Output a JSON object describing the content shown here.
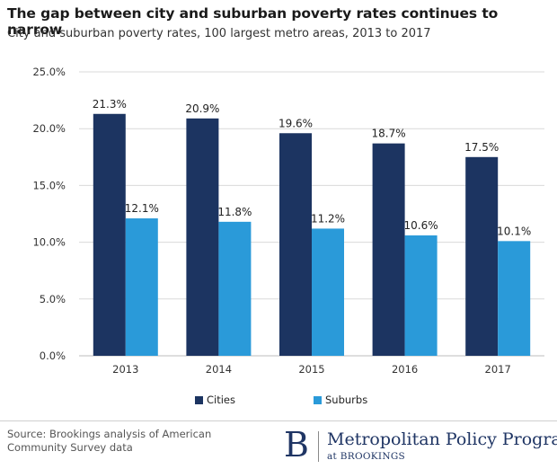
{
  "title": "The gap between city and suburban poverty rates continues to narrow",
  "subtitle": "City and suburban poverty rates, 100 largest metro areas, 2013 to 2017",
  "source": "Source: Brookings analysis of American Community Survey data",
  "brand": {
    "letter": "B",
    "program": "Metropolitan Policy Program",
    "at": "at BROOKINGS"
  },
  "colors": {
    "cities": "#1c3461",
    "suburbs": "#2a9ad9",
    "grid": "#d9d9d9"
  },
  "chart_data": {
    "type": "bar",
    "categories": [
      "2013",
      "2014",
      "2015",
      "2016",
      "2017"
    ],
    "series": [
      {
        "name": "Cities",
        "values": [
          21.3,
          20.9,
          19.6,
          18.7,
          17.5
        ],
        "labels": [
          "21.3%",
          "20.9%",
          "19.6%",
          "18.7%",
          "17.5%"
        ]
      },
      {
        "name": "Suburbs",
        "values": [
          12.1,
          11.8,
          11.2,
          10.6,
          10.1
        ],
        "labels": [
          "12.1%",
          "11.8%",
          "11.2%",
          "10.6%",
          "10.1%"
        ]
      }
    ],
    "y_ticks": [
      "0.0%",
      "5.0%",
      "10.0%",
      "15.0%",
      "20.0%",
      "25.0%"
    ],
    "ylim": [
      0,
      25
    ],
    "grid": true,
    "legend_position": "bottom"
  }
}
